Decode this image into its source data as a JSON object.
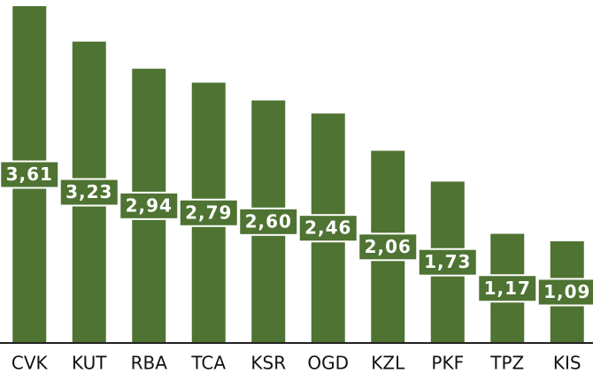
{
  "chart_data": {
    "type": "bar",
    "categories": [
      "CVK",
      "KUT",
      "RBA",
      "TCA",
      "KSR",
      "OGD",
      "KZL",
      "PKF",
      "TPZ",
      "KIS"
    ],
    "values": [
      3.61,
      3.23,
      2.94,
      2.79,
      2.6,
      2.46,
      2.06,
      1.73,
      1.17,
      1.09
    ],
    "value_labels": [
      "3,61",
      "3,23",
      "2,94",
      "2,79",
      "2,60",
      "2,46",
      "2,06",
      "1,73",
      "1,17",
      "1,09"
    ],
    "color": "#4e7332",
    "ylim": [
      0,
      3.61
    ]
  }
}
